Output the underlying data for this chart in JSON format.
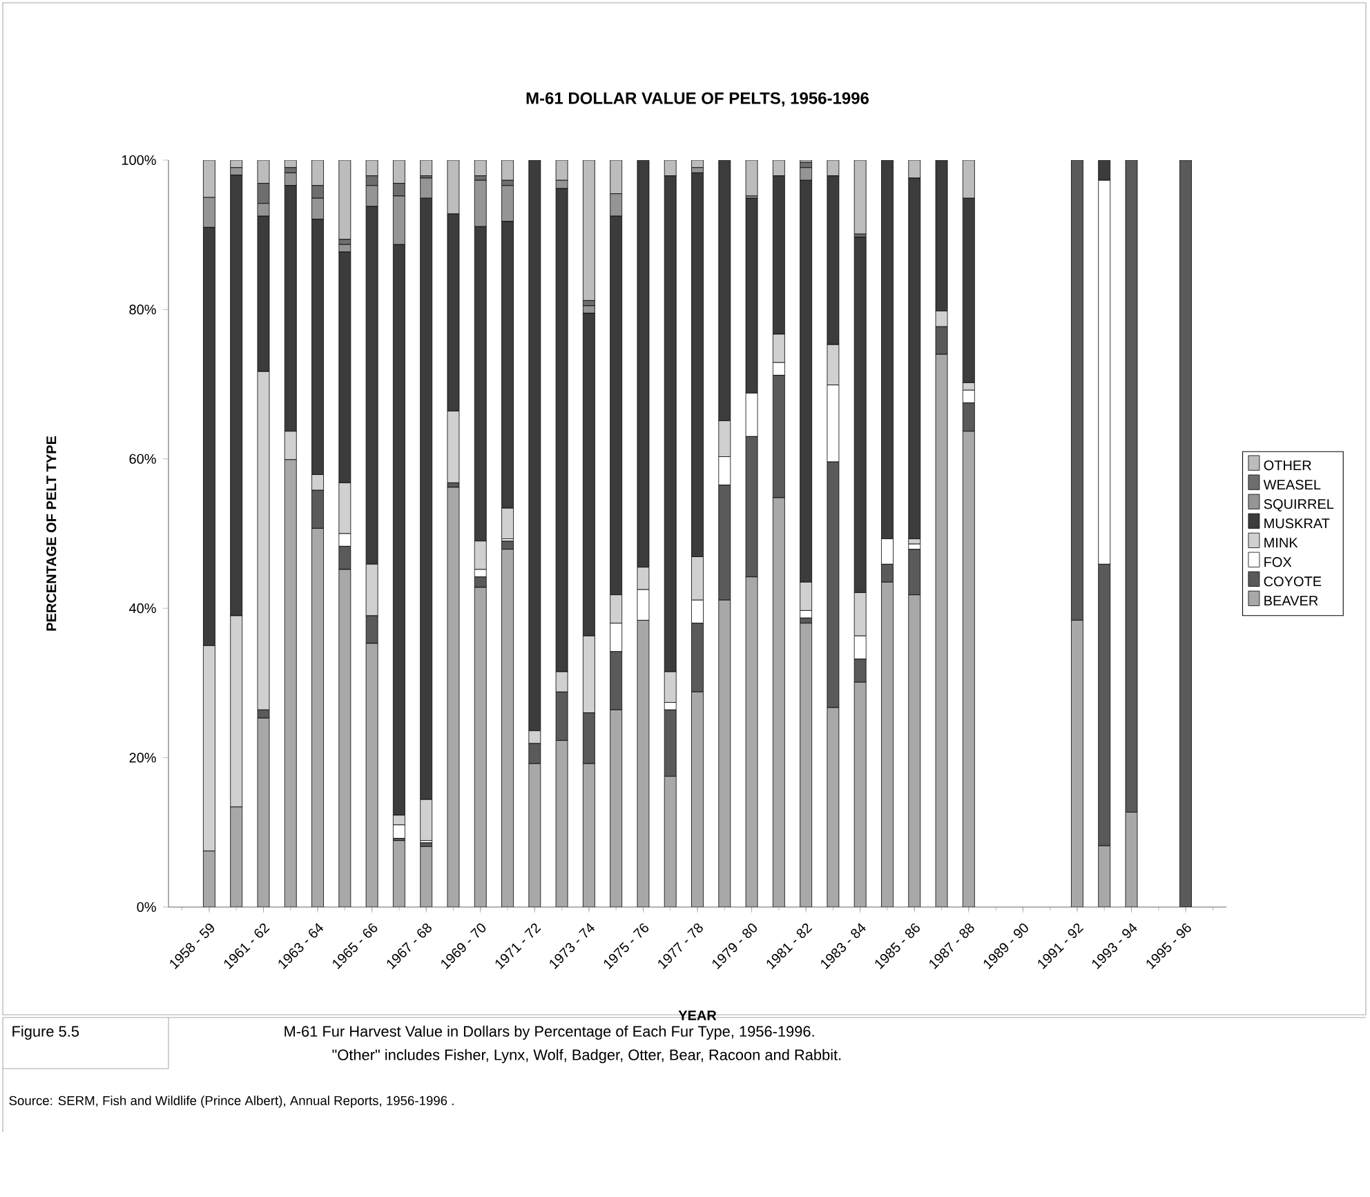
{
  "chart_data": {
    "type": "bar",
    "stacked": true,
    "title": "M-61 DOLLAR VALUE OF PELTS, 1956-1996",
    "xlabel": "YEAR",
    "ylabel": "PERCENTAGE OF PELT TYPE",
    "categories": [
      null,
      "1958 - 59",
      null,
      "1961 - 62",
      null,
      "1963 - 64",
      null,
      "1965 - 66",
      null,
      "1967 - 68",
      null,
      "1969 - 70",
      null,
      "1971 - 72",
      null,
      "1973 - 74",
      null,
      "1975 - 76",
      null,
      "1977 - 78",
      null,
      "1979 - 80",
      null,
      "1981 - 82",
      null,
      "1983 - 84",
      null,
      "1985 - 86",
      null,
      "1987 - 88",
      null,
      "1989 - 90",
      null,
      "1991 - 92",
      null,
      "1993 - 94",
      null,
      "1995 - 96",
      null
    ],
    "series": [
      {
        "name": "BEAVER",
        "color": "#a8a8a8",
        "values": [
          0,
          7.5,
          13.4,
          25.3,
          59.9,
          50.7,
          45.2,
          35.3,
          8.9,
          8.1,
          56.2,
          42.8,
          47.9,
          19.2,
          22.3,
          19.2,
          26.4,
          38.4,
          17.5,
          28.8,
          41.1,
          44.2,
          54.8,
          38,
          26.7,
          30.1,
          43.5,
          41.8,
          74,
          63.7,
          0,
          0,
          0,
          38.4,
          8.2,
          12.7,
          0,
          0,
          0
        ]
      },
      {
        "name": "COYOTE",
        "color": "#5a5a5a",
        "values": [
          0,
          0,
          0,
          1.1,
          0,
          5.1,
          3.1,
          3.7,
          0.3,
          0.5,
          0.6,
          1.4,
          1.1,
          2.7,
          6.5,
          6.8,
          7.8,
          0,
          8.9,
          9.2,
          15.4,
          18.8,
          16.4,
          0.7,
          32.9,
          3.1,
          2.4,
          6.1,
          3.7,
          3.8,
          0,
          0,
          0,
          61.6,
          37.7,
          87.3,
          0,
          100,
          0
        ]
      },
      {
        "name": "FOX",
        "color": "#ffffff",
        "values": [
          0,
          0,
          0,
          0,
          0,
          0,
          1.7,
          0,
          1.8,
          0.3,
          0,
          1,
          0.3,
          0,
          0,
          0,
          3.8,
          4.1,
          1,
          3.1,
          3.8,
          5.8,
          1.7,
          1,
          10.3,
          3.1,
          3.4,
          0.7,
          0,
          1.7,
          0,
          0,
          0,
          0,
          51.4,
          0,
          0,
          0,
          0
        ]
      },
      {
        "name": "MINK",
        "color": "#d0d0d0",
        "values": [
          0,
          27.5,
          25.6,
          45.3,
          3.8,
          2.1,
          6.8,
          6.9,
          1.3,
          5.5,
          9.6,
          3.8,
          4.1,
          1.7,
          2.7,
          10.3,
          3.8,
          3,
          4.1,
          5.8,
          4.8,
          0,
          3.8,
          3.8,
          5.4,
          5.8,
          0,
          0.7,
          2.1,
          1,
          0,
          0,
          0,
          0,
          0,
          0,
          0,
          0,
          0
        ]
      },
      {
        "name": "MUSKRAT",
        "color": "#3c3c3c",
        "values": [
          0,
          56,
          59,
          20.8,
          32.9,
          34.2,
          30.9,
          47.9,
          76.4,
          80.5,
          26.4,
          42.1,
          38.4,
          76.4,
          64.7,
          43.2,
          50.7,
          54.5,
          66.4,
          51.4,
          34.9,
          26.1,
          21.2,
          53.8,
          22.6,
          47.6,
          50.7,
          48.3,
          20.2,
          24.7,
          0,
          0,
          0,
          0,
          2.7,
          0,
          0,
          0,
          0
        ]
      },
      {
        "name": "SQUIRREL",
        "color": "#959595",
        "values": [
          0,
          4,
          1,
          1.7,
          1.7,
          2.8,
          1,
          2.8,
          6.5,
          2.7,
          0,
          6.2,
          4.8,
          0,
          1.1,
          1,
          3,
          0,
          0,
          0.7,
          0,
          0.3,
          0,
          1.7,
          0,
          0,
          0,
          0,
          0,
          0,
          0,
          0,
          0,
          0,
          0,
          0,
          0,
          0,
          0
        ]
      },
      {
        "name": "WEASEL",
        "color": "#6e6e6e",
        "values": [
          0,
          0,
          0,
          2.7,
          0.7,
          1.7,
          0.7,
          1.3,
          1.7,
          0.3,
          0,
          0.6,
          0.7,
          0,
          0,
          0.7,
          0,
          0,
          0,
          0,
          0,
          0,
          0,
          0.7,
          0,
          0.4,
          0,
          0,
          0,
          0,
          0,
          0,
          0,
          0,
          0,
          0,
          0,
          0,
          0
        ]
      },
      {
        "name": "OTHER",
        "color": "#bcbcbc",
        "values": [
          0,
          5,
          1,
          3.1,
          1,
          3.4,
          10.6,
          2.1,
          3.1,
          2.1,
          7.2,
          2.1,
          2.7,
          0,
          2.7,
          18.8,
          4.5,
          0,
          2.1,
          1,
          0,
          4.8,
          2.1,
          0.3,
          2.1,
          9.9,
          0,
          2.4,
          0,
          5.1,
          0,
          0,
          0,
          0,
          0,
          0,
          0,
          0,
          0
        ]
      }
    ],
    "ylim": [
      0,
      100
    ],
    "yticks": [
      {
        "value": 0,
        "label": "0%"
      },
      {
        "value": 20,
        "label": "20%"
      },
      {
        "value": 40,
        "label": "40%"
      },
      {
        "value": 60,
        "label": "60%"
      },
      {
        "value": 80,
        "label": "80%"
      },
      {
        "value": 100,
        "label": "100%"
      }
    ],
    "legend": "right",
    "annotations": [
      "Figure  5.5",
      "M-61 Fur Harvest Value in Dollars by Percentage of Each Fur Type, 1956-1996.",
      "\"Other\" includes Fisher, Lynx, Wolf, Badger, Otter, Bear, Racoon and Rabbit.",
      "Source: SERM, Fish and Wildlife (Prince Albert), Annual Reports, 1956-1996 ."
    ]
  }
}
